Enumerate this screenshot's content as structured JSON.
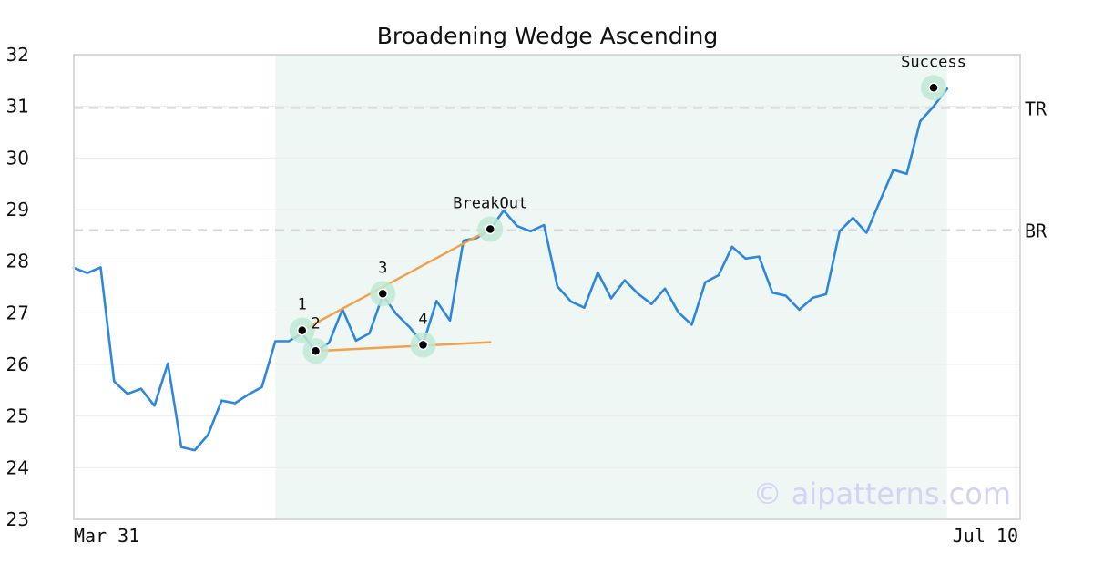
{
  "chart_data": {
    "type": "line",
    "title": "Broadening Wedge Ascending",
    "xlabel": "",
    "ylabel": "",
    "ylim": [
      23,
      32
    ],
    "yticks": [
      "23",
      "24",
      "25",
      "26",
      "27",
      "28",
      "29",
      "30",
      "31",
      "32"
    ],
    "xtick_labels": [
      "Mar 31",
      "Jul 10"
    ],
    "grid": true,
    "series": [
      {
        "color": "#2e86de",
        "values": [
          27.87,
          27.77,
          27.88,
          25.67,
          25.43,
          25.53,
          25.2,
          26.02,
          24.4,
          24.34,
          24.64,
          25.3,
          25.25,
          25.42,
          25.56,
          26.45,
          26.45,
          26.6,
          26.25,
          26.42,
          27.07,
          26.46,
          26.6,
          27.34,
          26.98,
          26.72,
          26.4,
          27.23,
          26.85,
          28.4,
          28.45,
          28.62,
          28.98,
          28.68,
          28.58,
          28.7,
          27.51,
          27.22,
          27.1,
          27.78,
          27.28,
          27.63,
          27.37,
          27.17,
          27.47,
          27.01,
          26.77,
          27.59,
          27.73,
          28.28,
          28.05,
          28.09,
          27.39,
          27.33,
          27.06,
          27.29,
          27.36,
          28.58,
          28.84,
          28.55,
          29.16,
          29.77,
          29.69,
          30.71,
          31.0,
          31.34
        ]
      }
    ],
    "shaded_region": {
      "start_index": 15,
      "end_index": 65,
      "color": "#eef7f3"
    },
    "reference_lines": [
      {
        "label": "TR",
        "value": 30.97
      },
      {
        "label": "BR",
        "value": 28.6
      }
    ],
    "pattern_points": [
      {
        "label": "1",
        "index": 17,
        "value": 26.66
      },
      {
        "label": "2",
        "index": 18,
        "value": 26.26
      },
      {
        "label": "3",
        "index": 23,
        "value": 27.37
      },
      {
        "label": "4",
        "index": 26,
        "value": 26.38
      },
      {
        "label": "BreakOut",
        "index": 31,
        "value": 28.62
      },
      {
        "label": "Success",
        "index": 64,
        "value": 31.36
      }
    ],
    "trend_lines": [
      {
        "from": [
          17,
          26.66
        ],
        "to": [
          31,
          28.62
        ]
      },
      {
        "from": [
          18,
          26.26
        ],
        "to": [
          31,
          26.43
        ]
      }
    ],
    "colors": {
      "price_line": "#2e86de",
      "trend_line": "#f4a04a",
      "marker_halo": "#bfe9d3",
      "reference_line": "#d9d9d9"
    },
    "watermark": "© aipatterns.com"
  }
}
